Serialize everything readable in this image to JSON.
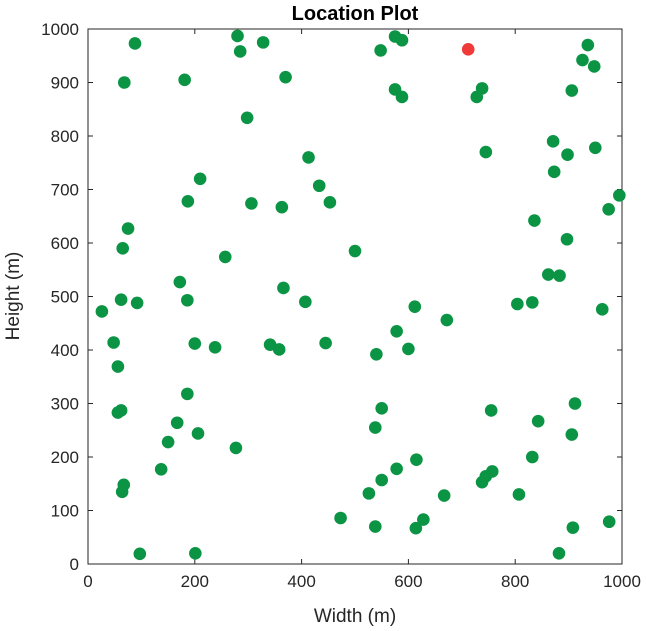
{
  "chart_data": {
    "type": "scatter",
    "title": "Location Plot",
    "xlabel": "Width (m)",
    "ylabel": "Height (m)",
    "xlim": [
      0,
      1000
    ],
    "ylim": [
      0,
      1000
    ],
    "xticks": [
      0,
      200,
      400,
      600,
      800,
      1000
    ],
    "yticks": [
      0,
      100,
      200,
      300,
      400,
      500,
      600,
      700,
      800,
      900,
      1000
    ],
    "grid": false,
    "series": [
      {
        "color": "#0b9444",
        "points": [
          [
            88,
            973
          ],
          [
            280,
            987
          ],
          [
            328,
            975
          ],
          [
            285,
            958
          ],
          [
            548,
            960
          ],
          [
            575,
            986
          ],
          [
            588,
            979
          ],
          [
            936,
            970
          ],
          [
            926,
            942
          ],
          [
            948,
            930
          ],
          [
            68,
            900
          ],
          [
            181,
            905
          ],
          [
            370,
            910
          ],
          [
            575,
            887
          ],
          [
            588,
            873
          ],
          [
            728,
            873
          ],
          [
            738,
            889
          ],
          [
            906,
            885
          ],
          [
            298,
            834
          ],
          [
            413,
            760
          ],
          [
            871,
            790
          ],
          [
            745,
            770
          ],
          [
            898,
            765
          ],
          [
            950,
            778
          ],
          [
            873,
            733
          ],
          [
            210,
            720
          ],
          [
            433,
            707
          ],
          [
            187,
            678
          ],
          [
            306,
            674
          ],
          [
            363,
            667
          ],
          [
            453,
            676
          ],
          [
            975,
            663
          ],
          [
            995,
            689
          ],
          [
            75,
            627
          ],
          [
            65,
            590
          ],
          [
            836,
            642
          ],
          [
            897,
            607
          ],
          [
            257,
            574
          ],
          [
            500,
            585
          ],
          [
            172,
            527
          ],
          [
            366,
            516
          ],
          [
            62,
            494
          ],
          [
            92,
            488
          ],
          [
            186,
            493
          ],
          [
            407,
            490
          ],
          [
            862,
            541
          ],
          [
            883,
            539
          ],
          [
            26,
            472
          ],
          [
            612,
            481
          ],
          [
            672,
            456
          ],
          [
            804,
            486
          ],
          [
            832,
            489
          ],
          [
            963,
            476
          ],
          [
            48,
            414
          ],
          [
            200,
            412
          ],
          [
            238,
            405
          ],
          [
            341,
            410
          ],
          [
            358,
            401
          ],
          [
            445,
            413
          ],
          [
            540,
            392
          ],
          [
            578,
            435
          ],
          [
            600,
            402
          ],
          [
            56,
            369
          ],
          [
            186,
            318
          ],
          [
            56,
            283
          ],
          [
            62,
            287
          ],
          [
            550,
            291
          ],
          [
            755,
            287
          ],
          [
            912,
            300
          ],
          [
            167,
            264
          ],
          [
            150,
            228
          ],
          [
            206,
            244
          ],
          [
            277,
            217
          ],
          [
            538,
            255
          ],
          [
            843,
            267
          ],
          [
            906,
            242
          ],
          [
            137,
            177
          ],
          [
            67,
            148
          ],
          [
            64,
            135
          ],
          [
            526,
            132
          ],
          [
            550,
            157
          ],
          [
            578,
            178
          ],
          [
            615,
            195
          ],
          [
            667,
            128
          ],
          [
            738,
            153
          ],
          [
            745,
            164
          ],
          [
            757,
            173
          ],
          [
            807,
            130
          ],
          [
            832,
            200
          ],
          [
            473,
            86
          ],
          [
            538,
            70
          ],
          [
            614,
            67
          ],
          [
            628,
            83
          ],
          [
            908,
            68
          ],
          [
            976,
            79
          ],
          [
            97,
            19
          ],
          [
            201,
            20
          ],
          [
            882,
            20
          ]
        ]
      },
      {
        "color": "#f03a3a",
        "points": [
          [
            712,
            962
          ]
        ]
      }
    ]
  }
}
